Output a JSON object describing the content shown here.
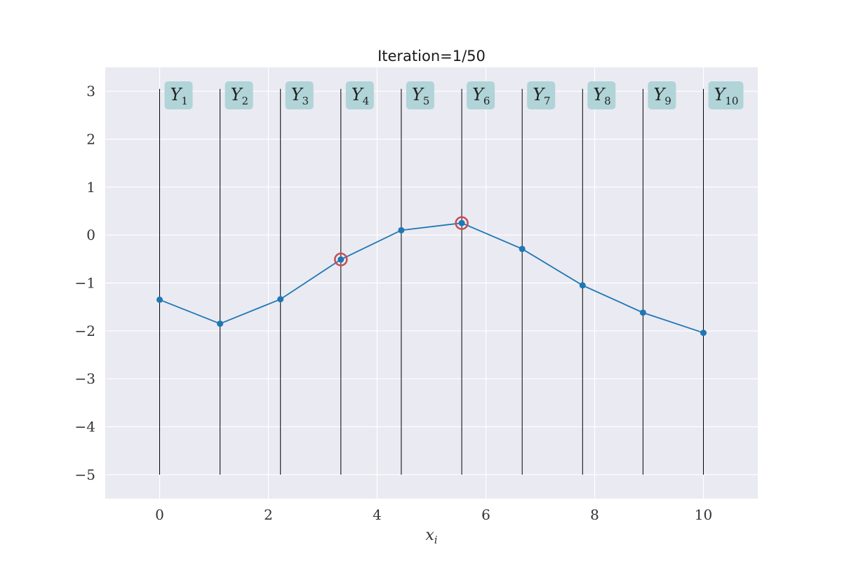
{
  "colors": {
    "background": "#eaeaf2",
    "grid": "#ffffff",
    "series_line": "#1f77b4",
    "vertical_lines": "#000000",
    "highlight_circle": "#c44e52",
    "label_box": "#b0d4d8"
  },
  "chart_data": {
    "type": "line",
    "title": "Iteration=1/50",
    "xlabel_main": "x",
    "xlabel_sub": "i",
    "xlim": [
      -1,
      11
    ],
    "ylim": [
      -5.5,
      3.5
    ],
    "xticks": [
      0,
      2,
      4,
      6,
      8,
      10
    ],
    "xtick_labels": [
      "0",
      "2",
      "4",
      "6",
      "8",
      "10"
    ],
    "yticks": [
      3,
      2,
      1,
      0,
      -1,
      -2,
      -3,
      -4,
      -5
    ],
    "ytick_labels": [
      "3",
      "2",
      "1",
      "0",
      "−1",
      "−2",
      "−3",
      "−4",
      "−5"
    ],
    "grid": true,
    "vertical_lines": {
      "ymin": -5,
      "ymax": 3.05
    },
    "series": [
      {
        "x": [
          0,
          1.111,
          2.222,
          3.333,
          4.444,
          5.556,
          6.667,
          7.778,
          8.889,
          10
        ],
        "y": [
          -1.35,
          -1.85,
          -1.34,
          -0.51,
          0.1,
          0.25,
          -0.29,
          -1.05,
          -1.62,
          -2.04
        ]
      }
    ],
    "highlighted_indices": [
      3,
      5
    ],
    "y_labels": [
      {
        "main": "Y",
        "sub": "1"
      },
      {
        "main": "Y",
        "sub": "2"
      },
      {
        "main": "Y",
        "sub": "3"
      },
      {
        "main": "Y",
        "sub": "4"
      },
      {
        "main": "Y",
        "sub": "5"
      },
      {
        "main": "Y",
        "sub": "6"
      },
      {
        "main": "Y",
        "sub": "7"
      },
      {
        "main": "Y",
        "sub": "8"
      },
      {
        "main": "Y",
        "sub": "9"
      },
      {
        "main": "Y",
        "sub": "10"
      }
    ]
  }
}
